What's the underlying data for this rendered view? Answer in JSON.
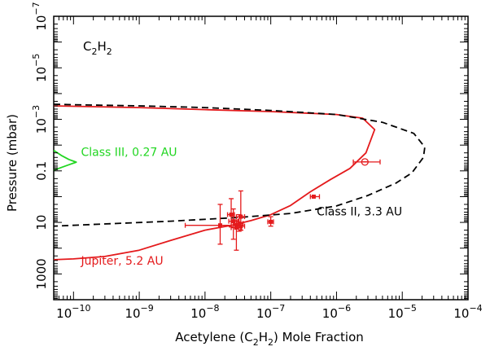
{
  "chart_data": {
    "type": "line",
    "title": "",
    "species_label": {
      "main": "C",
      "sub1": "2",
      "mid": "H",
      "sub2": "2"
    },
    "xlabel": {
      "pre": "Acetylene (C",
      "sub1": "2",
      "mid": "H",
      "sub2": "2",
      "post": ") Mole Fraction"
    },
    "ylabel": "Pressure (mbar)",
    "xscale": "log",
    "yscale": "log",
    "yinverted": true,
    "xlim": [
      5e-11,
      0.0001
    ],
    "ylim": [
      1e-07,
      10000.0
    ],
    "grid": false,
    "x_ticks": [
      {
        "value": 1e-10,
        "base": "10",
        "exp": "−10"
      },
      {
        "value": 1e-09,
        "base": "10",
        "exp": "−9"
      },
      {
        "value": 1e-08,
        "base": "10",
        "exp": "−8"
      },
      {
        "value": 1e-07,
        "base": "10",
        "exp": "−7"
      },
      {
        "value": 1e-06,
        "base": "10",
        "exp": "−6"
      },
      {
        "value": 1e-05,
        "base": "10",
        "exp": "−5"
      },
      {
        "value": 0.0001,
        "base": "10",
        "exp": "−4"
      }
    ],
    "y_ticks": [
      {
        "value": 1e-07,
        "label": "10",
        "exp": "−7"
      },
      {
        "value": 1e-05,
        "label": "10",
        "exp": "−5"
      },
      {
        "value": 0.001,
        "label": "10",
        "exp": "−3"
      },
      {
        "value": 0.1,
        "label": "0.1",
        "exp": ""
      },
      {
        "value": 10,
        "label": "10",
        "exp": ""
      },
      {
        "value": 1000,
        "label": "1000",
        "exp": ""
      }
    ],
    "series": [
      {
        "name": "Jupiter, 5.2 AU",
        "color": "#e41a1c",
        "dash": "solid",
        "points": [
          [
            5e-11,
            0.0003
          ],
          [
            1e-10,
            0.00031
          ],
          [
            1e-09,
            0.00035
          ],
          [
            1e-08,
            0.00042
          ],
          [
            1e-07,
            0.0005
          ],
          [
            1e-06,
            0.00065
          ],
          [
            2.5e-06,
            0.0009
          ],
          [
            3.8e-06,
            0.0025
          ],
          [
            2.8e-06,
            0.02
          ],
          [
            1.6e-06,
            0.08
          ],
          [
            8e-07,
            0.22
          ],
          [
            4e-07,
            0.65
          ],
          [
            2e-07,
            2.2
          ],
          [
            1e-07,
            5
          ],
          [
            5e-08,
            8.5
          ],
          [
            2.5e-08,
            13
          ],
          [
            1e-08,
            20
          ],
          [
            3e-09,
            50
          ],
          [
            1e-09,
            120
          ],
          [
            3e-10,
            210
          ],
          [
            1e-10,
            260
          ],
          [
            5e-11,
            280
          ]
        ]
      },
      {
        "name": "Class II, 3.3 AU",
        "color": "#000000",
        "dash": "dashed",
        "points": [
          [
            5e-11,
            0.00026
          ],
          [
            1e-10,
            0.00027
          ],
          [
            1e-09,
            0.0003
          ],
          [
            1e-08,
            0.00035
          ],
          [
            1e-07,
            0.00045
          ],
          [
            1e-06,
            0.00065
          ],
          [
            5e-06,
            0.0013
          ],
          [
            1.5e-05,
            0.0035
          ],
          [
            2.2e-05,
            0.012
          ],
          [
            2.1e-05,
            0.03
          ],
          [
            1.4e-05,
            0.12
          ],
          [
            8e-06,
            0.3
          ],
          [
            3e-06,
            0.9
          ],
          [
            1e-06,
            2.3
          ],
          [
            2e-07,
            4.5
          ],
          [
            3e-08,
            6.5
          ],
          [
            3e-09,
            9
          ],
          [
            2e-10,
            12
          ],
          [
            5e-11,
            14
          ]
        ]
      },
      {
        "name": "Class III, 0.27 AU",
        "color": "#22d622",
        "dash": "solid",
        "points": [
          [
            5e-11,
            0.016
          ],
          [
            6.5e-11,
            0.025
          ],
          [
            8.5e-11,
            0.036
          ],
          [
            1.1e-10,
            0.046
          ],
          [
            8.5e-11,
            0.058
          ],
          [
            6.5e-11,
            0.074
          ],
          [
            5e-11,
            0.095
          ]
        ]
      }
    ],
    "observations": [
      {
        "x": 2.7e-06,
        "y": 0.045,
        "xerr": [
          1.8e-06,
          4.6e-06
        ],
        "yerr": [
          0.045,
          0.045
        ],
        "marker": "circle-open"
      },
      {
        "x": 4.5e-07,
        "y": 1.0,
        "xerr": [
          4e-07,
          5.5e-07
        ],
        "yerr": [
          1.0,
          1.0
        ],
        "marker": "square"
      },
      {
        "x": 1e-07,
        "y": 9.5,
        "xerr": [
          9e-08,
          1.1e-07
        ],
        "yerr": [
          6,
          14
        ],
        "marker": "square"
      },
      {
        "x": 3.5e-08,
        "y": 6,
        "xerr": [
          3e-08,
          4e-08
        ],
        "yerr": [
          0.6,
          20
        ],
        "marker": "square"
      },
      {
        "x": 2.5e-08,
        "y": 5,
        "xerr": [
          2.2e-08,
          2.8e-08
        ],
        "yerr": [
          1.2,
          15
        ],
        "marker": "square"
      },
      {
        "x": 3.3e-08,
        "y": 11,
        "xerr": [
          2.8e-08,
          3.8e-08
        ],
        "yerr": [
          5,
          22
        ],
        "marker": "square"
      },
      {
        "x": 2.7e-08,
        "y": 9,
        "xerr": [
          2.3e-08,
          3.2e-08
        ],
        "yerr": [
          3,
          45
        ],
        "marker": "square"
      },
      {
        "x": 1.7e-08,
        "y": 13,
        "xerr": [
          5e-09,
          3.5e-08
        ],
        "yerr": [
          2,
          70
        ],
        "marker": "square"
      },
      {
        "x": 3e-08,
        "y": 16,
        "xerr": [
          2.5e-08,
          3.6e-08
        ],
        "yerr": [
          8,
          120
        ],
        "marker": "square"
      },
      {
        "x": 3.5e-08,
        "y": 14,
        "xerr": [
          3e-08,
          4e-08
        ],
        "yerr": [
          10,
          20
        ],
        "marker": "square"
      }
    ],
    "annotations": [
      {
        "text": "Class III, 0.27 AU",
        "color": "#22d622",
        "x": 1.3e-10,
        "y": 0.026
      },
      {
        "text": "Class II, 3.3 AU",
        "color": "#000000",
        "x": 5e-07,
        "y": 5.3
      },
      {
        "text": "Jupiter, 5.2 AU",
        "color": "#e41a1c",
        "x": 1.3e-10,
        "y": 440
      }
    ]
  }
}
